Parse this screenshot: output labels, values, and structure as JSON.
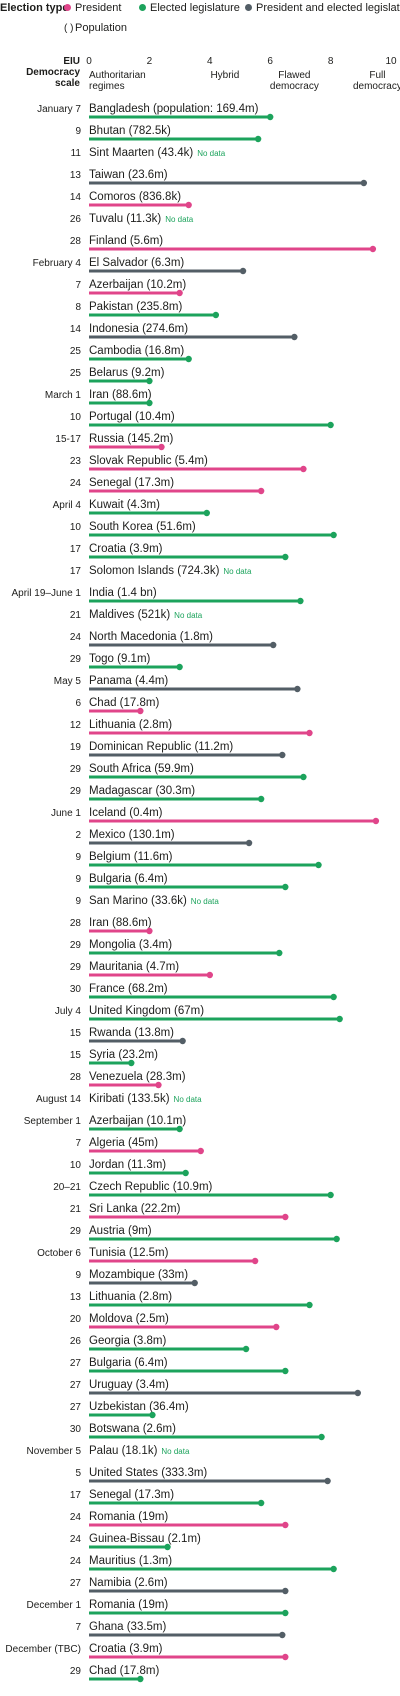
{
  "legend": {
    "title": "Election type",
    "president": "President",
    "legislature": "Elected legislature",
    "both": "President and elected legislature",
    "population": "Population",
    "population_glyph": "( )"
  },
  "colors": {
    "president": "#e0458a",
    "legislature": "#1ca35c",
    "both": "#535e66",
    "nodata_text": "#1ca35c",
    "axis_text": "#1d1d1b"
  },
  "chart_data": {
    "type": "bar",
    "orientation": "horizontal",
    "xlabel": "EIU Democracy scale",
    "xlim": [
      0,
      10
    ],
    "xticks": [
      0,
      2,
      4,
      6,
      8,
      10
    ],
    "scale_labels": [
      {
        "at": 0,
        "text": [
          "Authoritarian",
          "regimes"
        ]
      },
      {
        "at": 4.5,
        "text": [
          "Hybrid"
        ]
      },
      {
        "at": 6.8,
        "text": [
          "Flawed",
          "democracy"
        ]
      },
      {
        "at": 9.55,
        "text": [
          "Full",
          "democracy"
        ]
      }
    ],
    "nodata_label": "No data",
    "rows": [
      {
        "date": "January 7",
        "label": "Bangladesh (population: 169.4m)",
        "type": "legislature",
        "value": 6.0
      },
      {
        "date": "9",
        "label": "Bhutan (782.5k)",
        "type": "legislature",
        "value": 5.6
      },
      {
        "date": "11",
        "label": "Sint Maarten (43.4k)",
        "type": "legislature",
        "value": null
      },
      {
        "date": "13",
        "label": "Taiwan (23.6m)",
        "type": "both",
        "value": 9.1
      },
      {
        "date": "14",
        "label": "Comoros (836.8k)",
        "type": "president",
        "value": 3.3
      },
      {
        "date": "26",
        "label": "Tuvalu (11.3k)",
        "type": "legislature",
        "value": null
      },
      {
        "date": "28",
        "label": "Finland (5.6m)",
        "type": "president",
        "value": 9.4
      },
      {
        "date": "February 4",
        "label": "El Salvador (6.3m)",
        "type": "both",
        "value": 5.1
      },
      {
        "date": "7",
        "label": "Azerbaijan (10.2m)",
        "type": "president",
        "value": 3.0
      },
      {
        "date": "8",
        "label": "Pakistan (235.8m)",
        "type": "legislature",
        "value": 4.2
      },
      {
        "date": "14",
        "label": "Indonesia (274.6m)",
        "type": "both",
        "value": 6.8
      },
      {
        "date": "25",
        "label": "Cambodia (16.8m)",
        "type": "legislature",
        "value": 3.3
      },
      {
        "date": "25",
        "label": "Belarus (9.2m)",
        "type": "legislature",
        "value": 2.0
      },
      {
        "date": "March 1",
        "label": "Iran (88.6m)",
        "type": "legislature",
        "value": 2.0
      },
      {
        "date": "10",
        "label": "Portugal (10.4m)",
        "type": "legislature",
        "value": 8.0
      },
      {
        "date": "15-17",
        "label": "Russia (145.2m)",
        "type": "president",
        "value": 2.4
      },
      {
        "date": "23",
        "label": "Slovak Republic (5.4m)",
        "type": "president",
        "value": 7.1
      },
      {
        "date": "24",
        "label": "Senegal (17.3m)",
        "type": "president",
        "value": 5.7
      },
      {
        "date": "April 4",
        "label": "Kuwait (4.3m)",
        "type": "legislature",
        "value": 3.9
      },
      {
        "date": "10",
        "label": "South Korea (51.6m)",
        "type": "legislature",
        "value": 8.1
      },
      {
        "date": "17",
        "label": "Croatia (3.9m)",
        "type": "legislature",
        "value": 6.5
      },
      {
        "date": "17",
        "label": "Solomon Islands (724.3k)",
        "type": "legislature",
        "value": null
      },
      {
        "date": "April 19–June 1",
        "label": "India (1.4 bn)",
        "type": "legislature",
        "value": 7.0
      },
      {
        "date": "21",
        "label": "Maldives (521k)",
        "type": "legislature",
        "value": null
      },
      {
        "date": "24",
        "label": "North Macedonia (1.8m)",
        "type": "both",
        "value": 6.1
      },
      {
        "date": "29",
        "label": "Togo (9.1m)",
        "type": "legislature",
        "value": 3.0
      },
      {
        "date": "May 5",
        "label": "Panama (4.4m)",
        "type": "both",
        "value": 6.9
      },
      {
        "date": "6",
        "label": "Chad (17.8m)",
        "type": "president",
        "value": 1.7
      },
      {
        "date": "12",
        "label": "Lithuania (2.8m)",
        "type": "president",
        "value": 7.3
      },
      {
        "date": "19",
        "label": "Dominican Republic (11.2m)",
        "type": "both",
        "value": 6.4
      },
      {
        "date": "29",
        "label": "South Africa (59.9m)",
        "type": "legislature",
        "value": 7.1
      },
      {
        "date": "29",
        "label": "Madagascar (30.3m)",
        "type": "legislature",
        "value": 5.7
      },
      {
        "date": "June 1",
        "label": "Iceland (0.4m)",
        "type": "president",
        "value": 9.5
      },
      {
        "date": "2",
        "label": "Mexico (130.1m)",
        "type": "both",
        "value": 5.3
      },
      {
        "date": "9",
        "label": "Belgium (11.6m)",
        "type": "legislature",
        "value": 7.6
      },
      {
        "date": "9",
        "label": "Bulgaria (6.4m)",
        "type": "legislature",
        "value": 6.5
      },
      {
        "date": "9",
        "label": "San Marino (33.6k)",
        "type": "legislature",
        "value": null
      },
      {
        "date": "28",
        "label": "Iran (88.6m)",
        "type": "president",
        "value": 2.0
      },
      {
        "date": "29",
        "label": "Mongolia (3.4m)",
        "type": "legislature",
        "value": 6.3
      },
      {
        "date": "29",
        "label": "Mauritania (4.7m)",
        "type": "president",
        "value": 4.0
      },
      {
        "date": "30",
        "label": "France (68.2m)",
        "type": "legislature",
        "value": 8.1
      },
      {
        "date": "July 4",
        "label": "United Kingdom (67m)",
        "type": "legislature",
        "value": 8.3
      },
      {
        "date": "15",
        "label": "Rwanda (13.8m)",
        "type": "both",
        "value": 3.1
      },
      {
        "date": "15",
        "label": "Syria (23.2m)",
        "type": "legislature",
        "value": 1.4
      },
      {
        "date": "28",
        "label": "Venezuela (28.3m)",
        "type": "president",
        "value": 2.3
      },
      {
        "date": "August 14",
        "label": "Kiribati (133.5k)",
        "type": "legislature",
        "value": null
      },
      {
        "date": "September 1",
        "label": "Azerbaijan (10.1m)",
        "type": "legislature",
        "value": 3.0
      },
      {
        "date": "7",
        "label": "Algeria (45m)",
        "type": "president",
        "value": 3.7
      },
      {
        "date": "10",
        "label": "Jordan (11.3m)",
        "type": "legislature",
        "value": 3.2
      },
      {
        "date": "20–21",
        "label": "Czech Republic (10.9m)",
        "type": "legislature",
        "value": 8.0
      },
      {
        "date": "21",
        "label": "Sri Lanka (22.2m)",
        "type": "president",
        "value": 6.5
      },
      {
        "date": "29",
        "label": "Austria (9m)",
        "type": "legislature",
        "value": 8.2
      },
      {
        "date": "October 6",
        "label": "Tunisia (12.5m)",
        "type": "president",
        "value": 5.5
      },
      {
        "date": "9",
        "label": "Mozambique (33m)",
        "type": "both",
        "value": 3.5
      },
      {
        "date": "13",
        "label": "Lithuania (2.8m)",
        "type": "legislature",
        "value": 7.3
      },
      {
        "date": "20",
        "label": "Moldova (2.5m)",
        "type": "president",
        "value": 6.2
      },
      {
        "date": "26",
        "label": "Georgia (3.8m)",
        "type": "legislature",
        "value": 5.2
      },
      {
        "date": "27",
        "label": "Bulgaria (6.4m)",
        "type": "legislature",
        "value": 6.5
      },
      {
        "date": "27",
        "label": "Uruguay (3.4m)",
        "type": "both",
        "value": 8.9
      },
      {
        "date": "27",
        "label": "Uzbekistan (36.4m)",
        "type": "legislature",
        "value": 2.1
      },
      {
        "date": "30",
        "label": "Botswana (2.6m)",
        "type": "legislature",
        "value": 7.7
      },
      {
        "date": "November 5",
        "label": "Palau (18.1k)",
        "type": "legislature",
        "value": null
      },
      {
        "date": "5",
        "label": "United States (333.3m)",
        "type": "both",
        "value": 7.9
      },
      {
        "date": "17",
        "label": "Senegal (17.3m)",
        "type": "legislature",
        "value": 5.7
      },
      {
        "date": "24",
        "label": "Romania (19m)",
        "type": "president",
        "value": 6.5
      },
      {
        "date": "24",
        "label": "Guinea-Bissau (2.1m)",
        "type": "legislature",
        "value": 2.6
      },
      {
        "date": "24",
        "label": "Mauritius (1.3m)",
        "type": "legislature",
        "value": 8.1
      },
      {
        "date": "27",
        "label": "Namibia (2.6m)",
        "type": "both",
        "value": 6.5
      },
      {
        "date": "December 1",
        "label": "Romania (19m)",
        "type": "legislature",
        "value": 6.5
      },
      {
        "date": "7",
        "label": "Ghana (33.5m)",
        "type": "both",
        "value": 6.4
      },
      {
        "date": "December (TBC)",
        "label": "Croatia (3.9m)",
        "type": "president",
        "value": 6.5
      },
      {
        "date": "29",
        "label": "Chad (17.8m)",
        "type": "legislature",
        "value": 1.7
      }
    ]
  }
}
